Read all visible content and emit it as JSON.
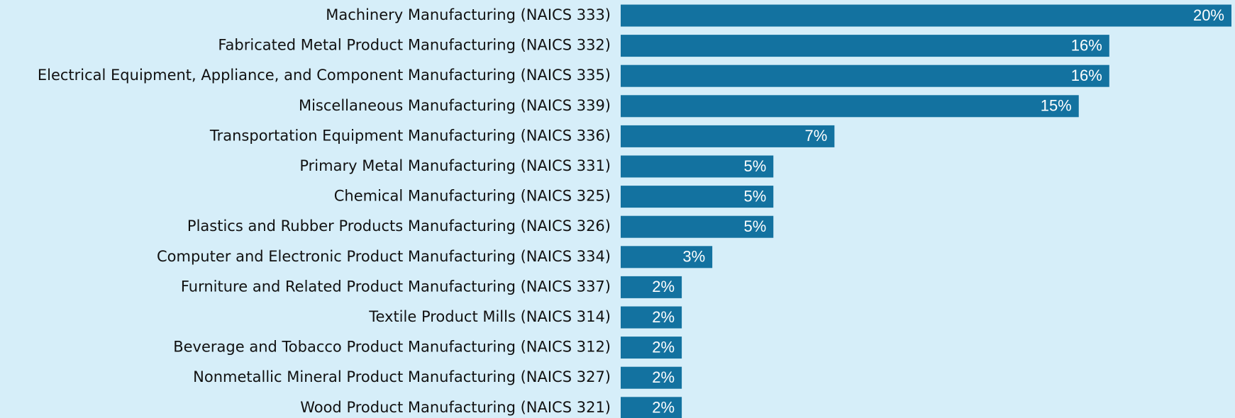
{
  "chart_data": {
    "type": "bar",
    "orientation": "horizontal",
    "color": "#1372a0",
    "categories": [
      "Machinery Manufacturing (NAICS 333)",
      "Fabricated Metal Product Manufacturing (NAICS 332)",
      "Electrical Equipment, Appliance, and Component Manufacturing (NAICS 335)",
      "Miscellaneous Manufacturing (NAICS 339)",
      "Transportation Equipment Manufacturing (NAICS 336)",
      "Primary Metal Manufacturing (NAICS 331)",
      "Chemical Manufacturing (NAICS 325)",
      "Plastics and Rubber Products Manufacturing (NAICS 326)",
      "Computer and Electronic Product Manufacturing (NAICS 334)",
      "Furniture and Related Product Manufacturing (NAICS 337)",
      "Textile Product Mills (NAICS 314)",
      "Beverage and Tobacco Product Manufacturing (NAICS 312)",
      "Nonmetallic Mineral Product Manufacturing (NAICS 327)",
      "Wood Product Manufacturing (NAICS 321)"
    ],
    "values": [
      20,
      16,
      16,
      15,
      7,
      5,
      5,
      5,
      3,
      2,
      2,
      2,
      2,
      2
    ],
    "value_labels": [
      "20%",
      "16%",
      "16%",
      "15%",
      "7%",
      "5%",
      "5%",
      "5%",
      "3%",
      "2%",
      "2%",
      "2%",
      "2%",
      "2%"
    ]
  }
}
